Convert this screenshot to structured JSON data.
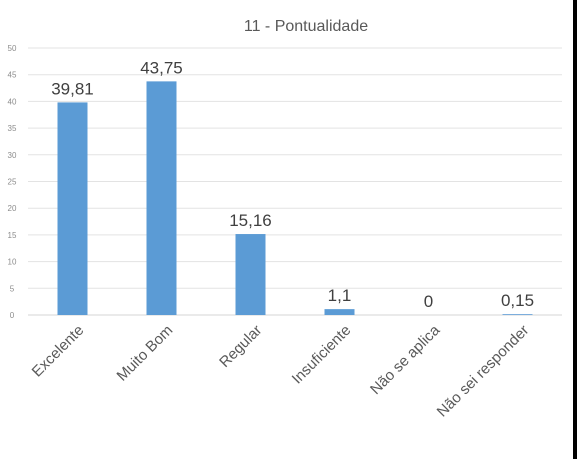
{
  "chart_data": {
    "type": "bar",
    "title": "11 - Pontualidade",
    "categories": [
      "Excelente",
      "Muito Bom",
      "Regular",
      "Insuficiente",
      "Não se aplica",
      "Não sei responder"
    ],
    "values": [
      39.81,
      43.75,
      15.16,
      1.1,
      0,
      0.15
    ],
    "data_labels": [
      "39,81",
      "43,75",
      "15,16",
      "1,1",
      "0",
      "0,15"
    ],
    "ylim": [
      0,
      50
    ],
    "yticks": [
      0,
      5,
      10,
      15,
      20,
      25,
      30,
      35,
      40,
      45,
      50
    ],
    "grid": true,
    "bar_color": "#5b9bd5",
    "legend": "none"
  }
}
